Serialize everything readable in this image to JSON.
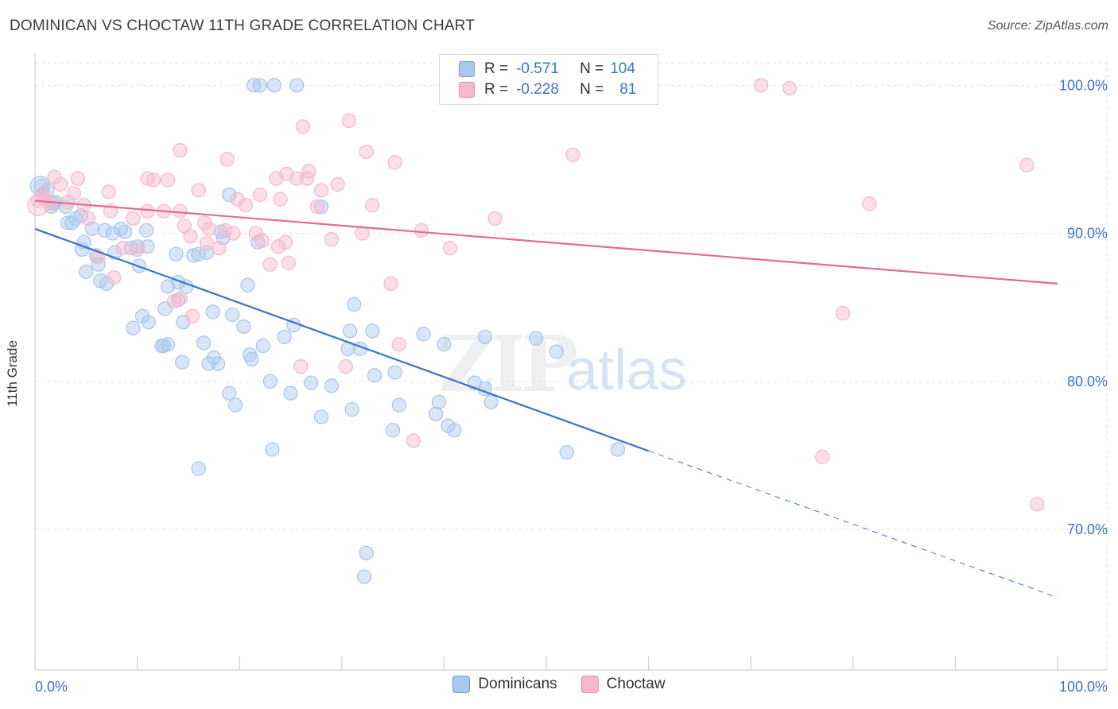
{
  "header": {
    "title": "DOMINICAN VS CHOCTAW 11TH GRADE CORRELATION CHART",
    "source": "Source: ZipAtlas.com"
  },
  "legend": {
    "rows": [
      {
        "r_label": "R =",
        "r_value": "-0.571",
        "n_label": "N =",
        "n_value": "104",
        "color": "#aac8ef"
      },
      {
        "r_label": "R =",
        "r_value": "-0.228",
        "n_label": "N =",
        "n_value": "81",
        "color": "#f6b9cb"
      }
    ]
  },
  "watermark": {
    "zip": "ZIP",
    "atlas": "atlas"
  },
  "chart_data": {
    "type": "scatter",
    "ylabel": "11th Grade",
    "xlim": [
      0,
      100
    ],
    "ylim": [
      60.5,
      102
    ],
    "x_tick_labels": [
      {
        "value": 0,
        "label": "0.0%"
      },
      {
        "value": 100,
        "label": "100.0%"
      }
    ],
    "y_tick_labels": [
      {
        "value": 100,
        "label": "100.0%"
      },
      {
        "value": 90,
        "label": "90.0%"
      },
      {
        "value": 80,
        "label": "80.0%"
      },
      {
        "value": 70,
        "label": "70.0%"
      }
    ],
    "grid": true,
    "legend_position": "top-center",
    "series": [
      {
        "name": "Dominicans",
        "color": "#3b73c8",
        "fill": "#aac8ef",
        "trend": {
          "x0": 0,
          "y0": 90.3,
          "x1": 60,
          "y1": 75.3,
          "dash_to_x": 100,
          "dash_to_y": 65.4
        },
        "points": [
          [
            0.6,
            93.2
          ],
          [
            0.8,
            92.6
          ],
          [
            1.2,
            92.9
          ],
          [
            1.6,
            91.8
          ],
          [
            2.0,
            92.1
          ],
          [
            3.0,
            91.8
          ],
          [
            1.8,
            92.0
          ],
          [
            4.0,
            91.0
          ],
          [
            4.5,
            91.2
          ],
          [
            3.2,
            90.7
          ],
          [
            3.6,
            90.7
          ],
          [
            5.6,
            90.3
          ],
          [
            6.8,
            90.2
          ],
          [
            8.4,
            90.3
          ],
          [
            7.6,
            90.0
          ],
          [
            8.8,
            90.1
          ],
          [
            10.9,
            90.2
          ],
          [
            4.8,
            89.4
          ],
          [
            4.6,
            88.9
          ],
          [
            6.0,
            88.5
          ],
          [
            7.8,
            88.7
          ],
          [
            9.4,
            89.0
          ],
          [
            10.0,
            89.1
          ],
          [
            11.0,
            89.1
          ],
          [
            6.2,
            87.9
          ],
          [
            10.2,
            87.8
          ],
          [
            5.0,
            87.4
          ],
          [
            6.4,
            86.8
          ],
          [
            7.0,
            86.6
          ],
          [
            13.8,
            88.6
          ],
          [
            15.5,
            88.5
          ],
          [
            16.0,
            88.6
          ],
          [
            16.8,
            88.7
          ],
          [
            18.4,
            89.7
          ],
          [
            18.2,
            90.1
          ],
          [
            21.8,
            89.4
          ],
          [
            28.0,
            91.8
          ],
          [
            19.0,
            92.6
          ],
          [
            13.0,
            86.4
          ],
          [
            14.0,
            86.7
          ],
          [
            14.8,
            86.4
          ],
          [
            20.8,
            86.5
          ],
          [
            14.0,
            85.5
          ],
          [
            31.2,
            85.2
          ],
          [
            12.7,
            84.9
          ],
          [
            17.4,
            84.7
          ],
          [
            19.3,
            84.5
          ],
          [
            10.5,
            84.4
          ],
          [
            11.1,
            84.0
          ],
          [
            14.5,
            84.0
          ],
          [
            9.6,
            83.6
          ],
          [
            20.4,
            83.7
          ],
          [
            25.3,
            83.8
          ],
          [
            24.4,
            83.0
          ],
          [
            30.8,
            83.4
          ],
          [
            33.0,
            83.4
          ],
          [
            38.0,
            83.2
          ],
          [
            44.0,
            83.0
          ],
          [
            49.0,
            82.9
          ],
          [
            12.4,
            82.4
          ],
          [
            13.0,
            82.5
          ],
          [
            12.6,
            82.4
          ],
          [
            16.5,
            82.6
          ],
          [
            22.3,
            82.4
          ],
          [
            21.0,
            81.8
          ],
          [
            21.2,
            81.5
          ],
          [
            30.6,
            82.2
          ],
          [
            31.8,
            82.2
          ],
          [
            40.0,
            82.5
          ],
          [
            51.0,
            82.0
          ],
          [
            14.4,
            81.3
          ],
          [
            17.0,
            81.2
          ],
          [
            17.5,
            81.6
          ],
          [
            17.9,
            81.2
          ],
          [
            33.2,
            80.4
          ],
          [
            35.2,
            80.6
          ],
          [
            23.0,
            80.0
          ],
          [
            27.0,
            79.9
          ],
          [
            29.0,
            79.7
          ],
          [
            43.0,
            79.9
          ],
          [
            44.0,
            79.5
          ],
          [
            19.0,
            79.2
          ],
          [
            25.0,
            79.2
          ],
          [
            19.6,
            78.4
          ],
          [
            39.5,
            78.6
          ],
          [
            44.6,
            78.6
          ],
          [
            35.6,
            78.4
          ],
          [
            31.0,
            78.1
          ],
          [
            28.0,
            77.6
          ],
          [
            39.2,
            77.8
          ],
          [
            40.4,
            77.0
          ],
          [
            35.0,
            76.7
          ],
          [
            41.0,
            76.7
          ],
          [
            52.0,
            75.2
          ],
          [
            57.0,
            75.4
          ],
          [
            23.2,
            75.4
          ],
          [
            16.0,
            74.1
          ],
          [
            32.4,
            68.4
          ],
          [
            32.2,
            66.8
          ],
          [
            21.4,
            100.0
          ],
          [
            22.0,
            100.0
          ],
          [
            23.4,
            100.0
          ],
          [
            25.6,
            100.0
          ]
        ]
      },
      {
        "name": "Choctaw",
        "color": "#e36a93",
        "fill": "#f6b9cb",
        "trend": {
          "x0": 0,
          "y0": 92.2,
          "x1": 100,
          "y1": 86.6
        },
        "points": [
          [
            0.3,
            92.2
          ],
          [
            0.8,
            92.7
          ],
          [
            1.0,
            92.3
          ],
          [
            1.6,
            92.0
          ],
          [
            1.9,
            93.8
          ],
          [
            2.5,
            93.3
          ],
          [
            4.2,
            93.7
          ],
          [
            3.8,
            92.7
          ],
          [
            3.2,
            92.1
          ],
          [
            4.8,
            91.9
          ],
          [
            5.2,
            91.0
          ],
          [
            7.2,
            92.8
          ],
          [
            7.4,
            91.5
          ],
          [
            9.6,
            91.0
          ],
          [
            11.0,
            91.5
          ],
          [
            12.6,
            91.5
          ],
          [
            14.2,
            91.5
          ],
          [
            11.0,
            93.7
          ],
          [
            11.6,
            93.6
          ],
          [
            13.0,
            93.6
          ],
          [
            14.2,
            95.6
          ],
          [
            16.0,
            92.9
          ],
          [
            18.8,
            95.0
          ],
          [
            19.8,
            92.3
          ],
          [
            20.6,
            91.9
          ],
          [
            22.0,
            92.6
          ],
          [
            23.6,
            93.7
          ],
          [
            24.0,
            92.3
          ],
          [
            24.6,
            94.0
          ],
          [
            25.6,
            93.7
          ],
          [
            26.6,
            93.7
          ],
          [
            27.6,
            91.8
          ],
          [
            26.8,
            94.2
          ],
          [
            28.0,
            92.9
          ],
          [
            29.6,
            93.3
          ],
          [
            26.2,
            97.2
          ],
          [
            30.7,
            97.6
          ],
          [
            32.4,
            95.5
          ],
          [
            35.2,
            94.8
          ],
          [
            29.0,
            89.6
          ],
          [
            32.0,
            90.0
          ],
          [
            33.0,
            91.9
          ],
          [
            37.8,
            90.2
          ],
          [
            40.6,
            89.0
          ],
          [
            45.0,
            91.0
          ],
          [
            52.6,
            95.3
          ],
          [
            48.0,
            100.0
          ],
          [
            57.8,
            100.0
          ],
          [
            71.0,
            100.0
          ],
          [
            73.8,
            99.8
          ],
          [
            81.6,
            92.0
          ],
          [
            97.0,
            94.6
          ],
          [
            14.6,
            90.5
          ],
          [
            15.2,
            89.8
          ],
          [
            16.6,
            90.7
          ],
          [
            17.0,
            90.3
          ],
          [
            18.6,
            90.2
          ],
          [
            19.4,
            90.0
          ],
          [
            21.6,
            90.0
          ],
          [
            22.2,
            89.5
          ],
          [
            23.8,
            89.1
          ],
          [
            24.5,
            89.4
          ],
          [
            16.8,
            89.3
          ],
          [
            18.0,
            89.0
          ],
          [
            8.6,
            89.0
          ],
          [
            10.0,
            88.9
          ],
          [
            6.2,
            88.4
          ],
          [
            7.7,
            87.0
          ],
          [
            23.0,
            87.9
          ],
          [
            24.8,
            88.0
          ],
          [
            34.8,
            86.6
          ],
          [
            13.6,
            85.4
          ],
          [
            14.2,
            85.6
          ],
          [
            15.4,
            84.4
          ],
          [
            26.0,
            81.0
          ],
          [
            30.4,
            81.0
          ],
          [
            35.6,
            82.5
          ],
          [
            37.0,
            76.0
          ],
          [
            79.0,
            84.6
          ],
          [
            77.0,
            74.9
          ],
          [
            98.0,
            71.7
          ]
        ]
      }
    ]
  }
}
